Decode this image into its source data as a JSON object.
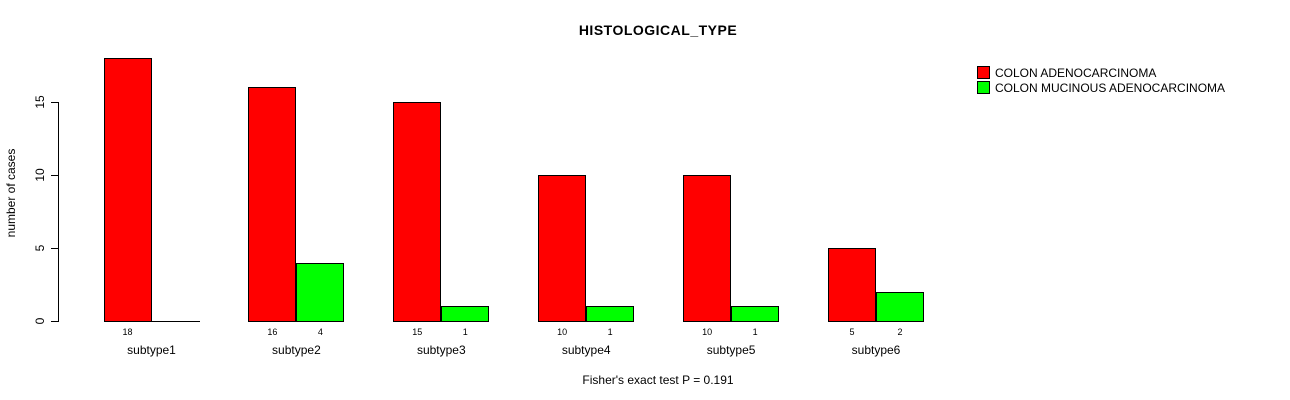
{
  "chart_data": {
    "type": "bar",
    "title": "HISTOLOGICAL_TYPE",
    "xlabel": "",
    "ylabel": "number of cases",
    "categories": [
      "subtype1",
      "subtype2",
      "subtype3",
      "subtype4",
      "subtype5",
      "subtype6"
    ],
    "series": [
      {
        "name": "COLON ADENOCARCINOMA",
        "color": "#ff0000",
        "values": [
          18,
          16,
          15,
          10,
          10,
          5
        ]
      },
      {
        "name": "COLON MUCINOUS ADENOCARCINOMA",
        "color": "#00ff00",
        "values": [
          0,
          4,
          1,
          1,
          1,
          2
        ]
      }
    ],
    "bar_count_labels": {
      "COLON ADENOCARCINOMA": [
        "18",
        "16",
        "15",
        "10",
        "10",
        "5"
      ],
      "COLON MUCINOUS ADENOCARCINOMA": [
        "",
        "4",
        "1",
        "1",
        "1",
        "2"
      ]
    },
    "y_ticks": [
      0,
      5,
      10,
      15
    ],
    "ylim": [
      0,
      15
    ],
    "grid": false,
    "legend_position": "top-right",
    "footnote": "Fisher's exact test P = 0.191"
  },
  "colors": {
    "bar_red": "#ff0000",
    "bar_green": "#00ff00",
    "axis": "#000000",
    "text": "#000000",
    "background": "#ffffff"
  }
}
